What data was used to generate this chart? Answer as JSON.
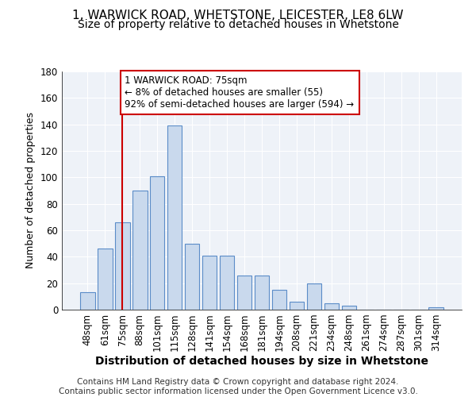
{
  "title": "1, WARWICK ROAD, WHETSTONE, LEICESTER, LE8 6LW",
  "subtitle": "Size of property relative to detached houses in Whetstone",
  "xlabel": "Distribution of detached houses by size in Whetstone",
  "ylabel": "Number of detached properties",
  "categories": [
    "48sqm",
    "61sqm",
    "75sqm",
    "88sqm",
    "101sqm",
    "115sqm",
    "128sqm",
    "141sqm",
    "154sqm",
    "168sqm",
    "181sqm",
    "194sqm",
    "208sqm",
    "221sqm",
    "234sqm",
    "248sqm",
    "261sqm",
    "274sqm",
    "287sqm",
    "301sqm",
    "314sqm"
  ],
  "values": [
    13,
    46,
    66,
    90,
    101,
    139,
    50,
    41,
    41,
    26,
    26,
    15,
    6,
    20,
    5,
    3,
    0,
    0,
    0,
    0,
    2
  ],
  "bar_color": "#c9d9ed",
  "bar_edgecolor": "#5b8cc8",
  "bar_linewidth": 0.8,
  "vline_x_index": 2,
  "vline_color": "#cc0000",
  "annotation_text": "1 WARWICK ROAD: 75sqm\n← 8% of detached houses are smaller (55)\n92% of semi-detached houses are larger (594) →",
  "annotation_fontsize": 8.5,
  "background_color": "#eef2f8",
  "grid_color": "#ffffff",
  "ylim": [
    0,
    180
  ],
  "yticks": [
    0,
    20,
    40,
    60,
    80,
    100,
    120,
    140,
    160,
    180
  ],
  "title_fontsize": 11,
  "subtitle_fontsize": 10,
  "xlabel_fontsize": 10,
  "ylabel_fontsize": 9,
  "tick_fontsize": 8.5,
  "footer_line1": "Contains HM Land Registry data © Crown copyright and database right 2024.",
  "footer_line2": "Contains public sector information licensed under the Open Government Licence v3.0.",
  "footer_fontsize": 7.5
}
